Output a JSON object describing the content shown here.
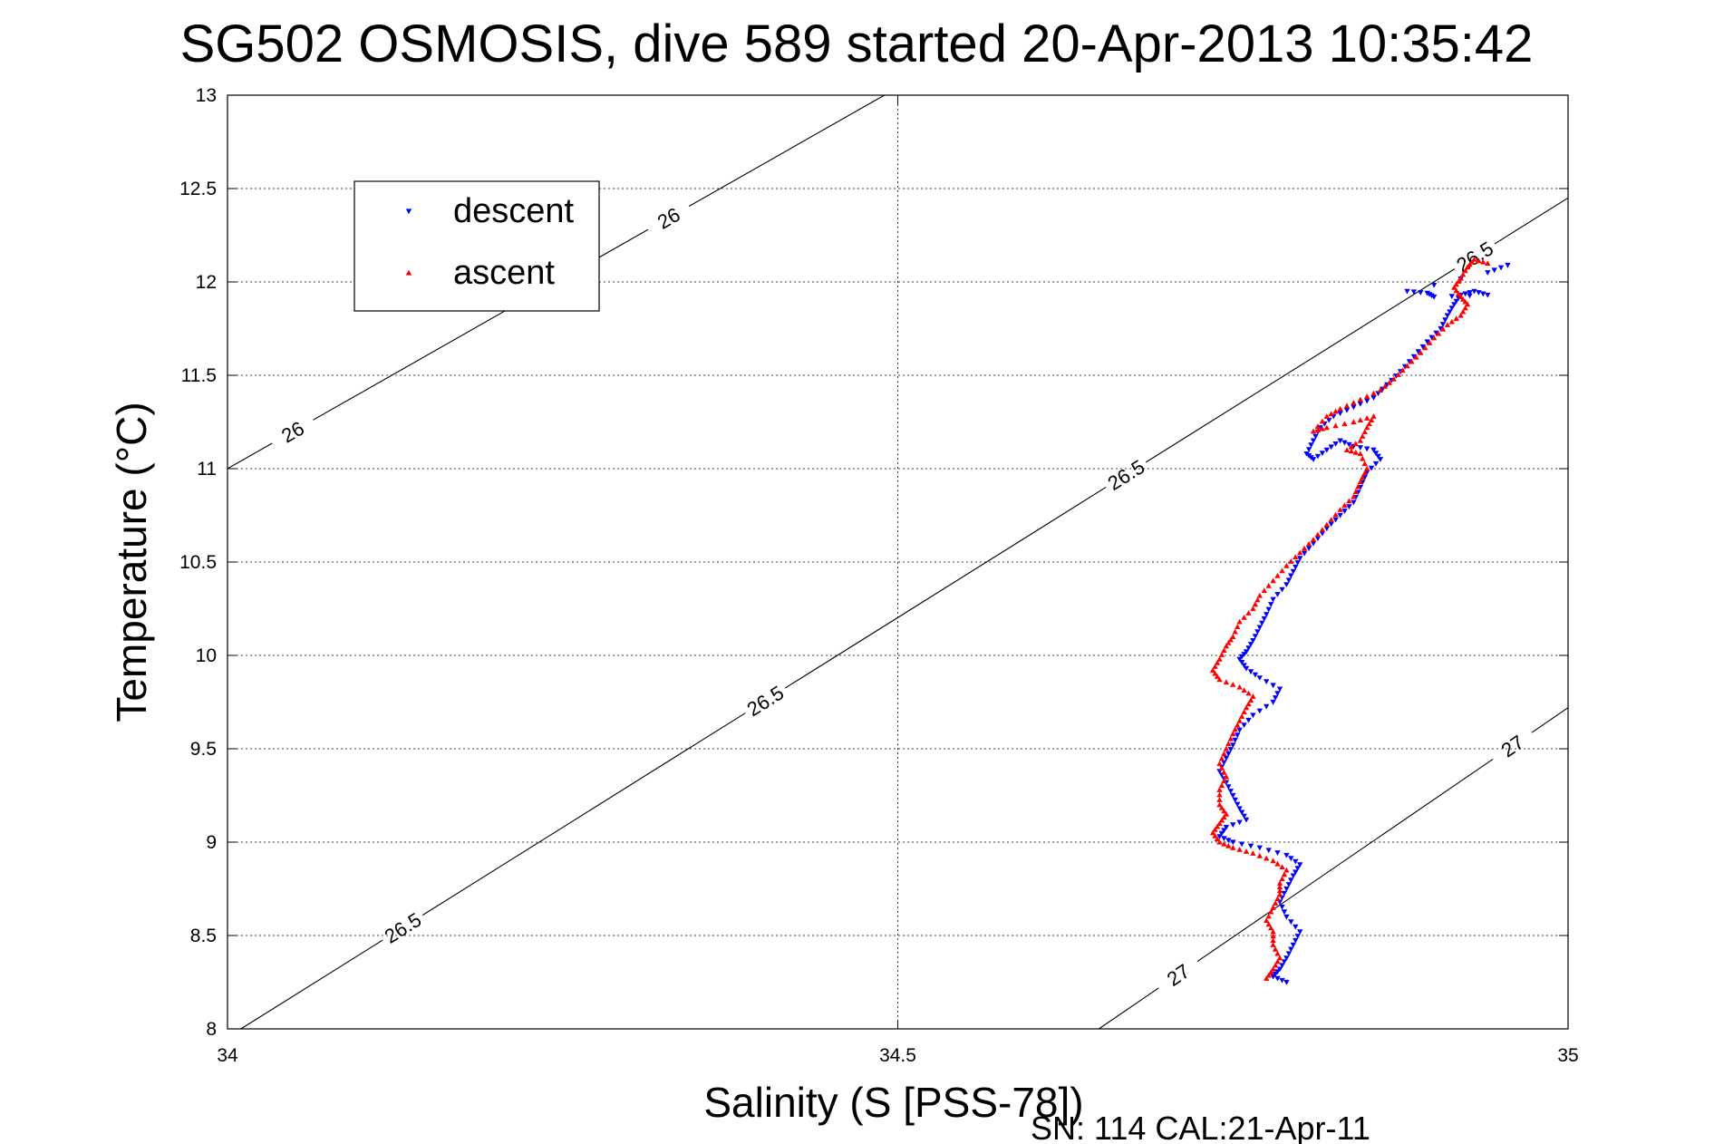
{
  "chart_data": {
    "type": "scatter",
    "title": "SG502 OSMOSIS, dive 589 started 20-Apr-2013 10:35:42",
    "xlabel": "Salinity (S [PSS-78])",
    "ylabel": "Temperature (°C)",
    "xlim": [
      34,
      35
    ],
    "ylim": [
      8,
      13
    ],
    "xticks": [
      {
        "value": 34,
        "label": "34"
      },
      {
        "value": 34.5,
        "label": "34.5"
      },
      {
        "value": 35,
        "label": "35"
      }
    ],
    "yticks": [
      {
        "value": 8,
        "label": "8"
      },
      {
        "value": 8.5,
        "label": "8.5"
      },
      {
        "value": 9,
        "label": "9"
      },
      {
        "value": 9.5,
        "label": "9.5"
      },
      {
        "value": 10,
        "label": "10"
      },
      {
        "value": 10.5,
        "label": "10.5"
      },
      {
        "value": 11,
        "label": "11"
      },
      {
        "value": 11.5,
        "label": "11.5"
      },
      {
        "value": 12,
        "label": "12"
      },
      {
        "value": 12.5,
        "label": "12.5"
      },
      {
        "value": 13,
        "label": "13"
      }
    ],
    "grid": true,
    "legend_position": "top-left",
    "density_contours": [
      {
        "level": "26",
        "points": [
          [
            34.0,
            11.0
          ],
          [
            34.49,
            13.0
          ]
        ],
        "labels": [
          [
            34.05,
            11.18
          ],
          [
            34.33,
            12.33
          ]
        ]
      },
      {
        "level": "26.5",
        "points": [
          [
            34.01,
            8.0
          ],
          [
            35.0,
            12.45
          ]
        ],
        "labels": [
          [
            34.13,
            8.55
          ],
          [
            34.4,
            9.77
          ],
          [
            34.67,
            10.97
          ],
          [
            34.93,
            12.14
          ]
        ]
      },
      {
        "level": "27",
        "points": [
          [
            34.65,
            8.0
          ],
          [
            35.0,
            9.72
          ]
        ],
        "labels": [
          [
            34.71,
            8.28
          ],
          [
            34.96,
            9.5
          ]
        ]
      }
    ],
    "series": [
      {
        "name": "descent",
        "color": "#0000ff",
        "marker": "triangle-down",
        "points": [
          [
            34.79,
            8.25
          ],
          [
            34.78,
            8.28
          ],
          [
            34.785,
            8.32
          ],
          [
            34.79,
            8.38
          ],
          [
            34.795,
            8.45
          ],
          [
            34.8,
            8.52
          ],
          [
            34.79,
            8.6
          ],
          [
            34.785,
            8.68
          ],
          [
            34.79,
            8.75
          ],
          [
            34.795,
            8.82
          ],
          [
            34.8,
            8.88
          ],
          [
            34.79,
            8.93
          ],
          [
            34.77,
            8.97
          ],
          [
            34.75,
            9.0
          ],
          [
            34.74,
            9.03
          ],
          [
            34.745,
            9.08
          ],
          [
            34.76,
            9.12
          ],
          [
            34.755,
            9.18
          ],
          [
            34.75,
            9.25
          ],
          [
            34.745,
            9.32
          ],
          [
            34.74,
            9.38
          ],
          [
            34.745,
            9.45
          ],
          [
            34.75,
            9.52
          ],
          [
            34.755,
            9.6
          ],
          [
            34.765,
            9.68
          ],
          [
            34.78,
            9.75
          ],
          [
            34.785,
            9.82
          ],
          [
            34.77,
            9.88
          ],
          [
            34.76,
            9.93
          ],
          [
            34.755,
            9.98
          ],
          [
            34.76,
            10.02
          ],
          [
            34.765,
            10.08
          ],
          [
            34.77,
            10.15
          ],
          [
            34.775,
            10.22
          ],
          [
            34.78,
            10.3
          ],
          [
            34.79,
            10.38
          ],
          [
            34.795,
            10.45
          ],
          [
            34.8,
            10.52
          ],
          [
            34.81,
            10.6
          ],
          [
            34.82,
            10.68
          ],
          [
            34.83,
            10.75
          ],
          [
            34.84,
            10.82
          ],
          [
            34.845,
            10.9
          ],
          [
            34.85,
            10.98
          ],
          [
            34.86,
            11.05
          ],
          [
            34.855,
            11.1
          ],
          [
            34.84,
            11.12
          ],
          [
            34.83,
            11.15
          ],
          [
            34.82,
            11.1
          ],
          [
            34.81,
            11.05
          ],
          [
            34.805,
            11.08
          ],
          [
            34.81,
            11.15
          ],
          [
            34.815,
            11.22
          ],
          [
            34.825,
            11.28
          ],
          [
            34.84,
            11.33
          ],
          [
            34.855,
            11.38
          ],
          [
            34.865,
            11.45
          ],
          [
            34.875,
            11.52
          ],
          [
            34.885,
            11.6
          ],
          [
            34.895,
            11.68
          ],
          [
            34.905,
            11.75
          ],
          [
            34.91,
            11.82
          ],
          [
            34.915,
            11.88
          ],
          [
            34.92,
            11.93
          ],
          [
            34.93,
            11.95
          ],
          [
            34.94,
            11.93
          ],
          [
            34.9,
            11.92
          ],
          [
            34.895,
            11.94
          ],
          [
            34.88,
            11.95
          ],
          [
            34.94,
            12.05
          ],
          [
            34.955,
            12.09
          ]
        ]
      },
      {
        "name": "ascent",
        "color": "#ff0000",
        "marker": "triangle-up",
        "points": [
          [
            34.775,
            8.27
          ],
          [
            34.78,
            8.32
          ],
          [
            34.785,
            8.38
          ],
          [
            34.78,
            8.45
          ],
          [
            34.78,
            8.52
          ],
          [
            34.775,
            8.58
          ],
          [
            34.78,
            8.65
          ],
          [
            34.785,
            8.72
          ],
          [
            34.785,
            8.78
          ],
          [
            34.79,
            8.85
          ],
          [
            34.78,
            8.9
          ],
          [
            34.765,
            8.94
          ],
          [
            34.75,
            8.97
          ],
          [
            34.74,
            9.0
          ],
          [
            34.735,
            9.05
          ],
          [
            34.74,
            9.1
          ],
          [
            34.745,
            9.15
          ],
          [
            34.74,
            9.2
          ],
          [
            34.74,
            9.28
          ],
          [
            34.745,
            9.35
          ],
          [
            34.74,
            9.42
          ],
          [
            34.745,
            9.5
          ],
          [
            34.75,
            9.58
          ],
          [
            34.755,
            9.65
          ],
          [
            34.76,
            9.72
          ],
          [
            34.765,
            9.78
          ],
          [
            34.755,
            9.83
          ],
          [
            34.74,
            9.87
          ],
          [
            34.735,
            9.92
          ],
          [
            34.74,
            9.98
          ],
          [
            34.745,
            10.05
          ],
          [
            34.75,
            10.1
          ],
          [
            34.755,
            10.18
          ],
          [
            34.765,
            10.25
          ],
          [
            34.77,
            10.32
          ],
          [
            34.78,
            10.4
          ],
          [
            34.79,
            10.48
          ],
          [
            34.8,
            10.55
          ],
          [
            34.81,
            10.62
          ],
          [
            34.82,
            10.7
          ],
          [
            34.83,
            10.78
          ],
          [
            34.84,
            10.85
          ],
          [
            34.845,
            10.93
          ],
          [
            34.85,
            11.0
          ],
          [
            34.845,
            11.08
          ],
          [
            34.835,
            11.1
          ],
          [
            34.845,
            11.15
          ],
          [
            34.85,
            11.22
          ],
          [
            34.855,
            11.28
          ],
          [
            34.84,
            11.25
          ],
          [
            34.82,
            11.22
          ],
          [
            34.81,
            11.2
          ],
          [
            34.82,
            11.28
          ],
          [
            34.83,
            11.32
          ],
          [
            34.845,
            11.37
          ],
          [
            34.86,
            11.42
          ],
          [
            34.87,
            11.48
          ],
          [
            34.88,
            11.55
          ],
          [
            34.89,
            11.62
          ],
          [
            34.9,
            11.7
          ],
          [
            34.91,
            11.77
          ],
          [
            34.92,
            11.82
          ],
          [
            34.925,
            11.88
          ],
          [
            34.92,
            11.92
          ],
          [
            34.915,
            11.97
          ],
          [
            34.92,
            12.02
          ],
          [
            34.925,
            12.08
          ],
          [
            34.93,
            12.12
          ],
          [
            34.94,
            12.1
          ]
        ]
      }
    ]
  },
  "legend": {
    "items": [
      {
        "label": "descent",
        "color": "#0000ff",
        "marker": "triangle-down"
      },
      {
        "label": "ascent",
        "color": "#ff0000",
        "marker": "triangle-up"
      }
    ]
  },
  "footer": {
    "text": "SN: 114  CAL:21-Apr-11"
  }
}
